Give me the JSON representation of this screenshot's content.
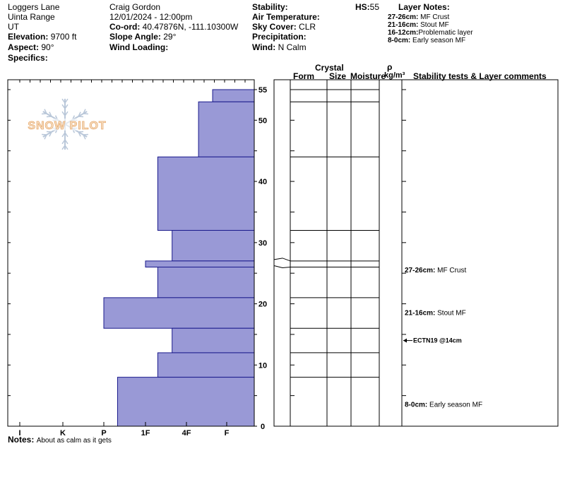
{
  "header": {
    "location": "Loggers Lane",
    "range": "Uinta Range",
    "state": "UT",
    "elevation_label": "Elevation:",
    "elevation_value": "9700 ft",
    "aspect_label": "Aspect:",
    "aspect_value": "90°",
    "specifics_label": "Specifics:",
    "observer": "Craig Gordon",
    "datetime": "12/01/2024 - 12:00pm",
    "coord_label": "Co-ord:",
    "coord_value": "40.47876N, -111.10300W",
    "slope_label": "Slope Angle:",
    "slope_value": "29°",
    "wind_loading_label": "Wind Loading:",
    "stability_label": "Stability:",
    "air_temp_label": "Air Temperature:",
    "sky_label": "Sky Cover:",
    "sky_value": "CLR",
    "precip_label": "Precipitation:",
    "wind_label": "Wind:",
    "wind_value": "N Calm",
    "hs_label": "HS:",
    "hs_value": "55",
    "layer_notes_title": "Layer Notes:",
    "layer_notes": [
      {
        "range": "27-26cm:",
        "text": "MF Crust"
      },
      {
        "range": "21-16cm:",
        "text": "Stout MF"
      },
      {
        "range": "16-12cm:",
        "text": "Problematic layer"
      },
      {
        "range": "8-0cm:",
        "text": "Early season MF"
      }
    ]
  },
  "columns": {
    "crystal": "Crystal",
    "form": "Form",
    "size": "Size",
    "moisture": "Moisture",
    "rho": "ρ",
    "density_unit": "kg/m³",
    "comments": "Stability tests & Layer comments"
  },
  "logo": {
    "text": "SNOW PILOT"
  },
  "chart_data": {
    "type": "bar",
    "hardness_ticks": [
      "I",
      "K",
      "P",
      "1F",
      "4F",
      "F"
    ],
    "height_ticks": [
      0,
      10,
      20,
      30,
      40,
      50,
      55
    ],
    "ylim": [
      0,
      55
    ],
    "layers": [
      {
        "top": 55,
        "bottom": 53,
        "hardness": 0.35
      },
      {
        "top": 53,
        "bottom": 44,
        "hardness": 0.7
      },
      {
        "top": 44,
        "bottom": 32,
        "hardness": 1.7
      },
      {
        "top": 32,
        "bottom": 27,
        "hardness": 1.35
      },
      {
        "top": 27,
        "bottom": 26,
        "hardness": 2.0
      },
      {
        "top": 26,
        "bottom": 21,
        "hardness": 1.7
      },
      {
        "top": 21,
        "bottom": 16,
        "hardness": 3.0
      },
      {
        "top": 16,
        "bottom": 12,
        "hardness": 1.35
      },
      {
        "top": 12,
        "bottom": 8,
        "hardness": 1.7
      },
      {
        "top": 8,
        "bottom": 0,
        "hardness": 2.67
      }
    ],
    "boundaries": [
      55,
      53,
      44,
      32,
      27,
      26,
      21,
      16,
      12,
      8
    ],
    "test": {
      "label": "ECTN19 @14cm",
      "depth": 14
    },
    "comments": [
      {
        "label": "27-26cm:",
        "text": "MF Crust",
        "depth": 25.5
      },
      {
        "label": "21-16cm:",
        "text": "Stout MF",
        "depth": 18.5
      },
      {
        "label": "8-0cm:",
        "text": "Early season MF",
        "depth": 3.5
      }
    ]
  },
  "notes": {
    "label": "Notes:",
    "text": "About as calm as it gets"
  }
}
